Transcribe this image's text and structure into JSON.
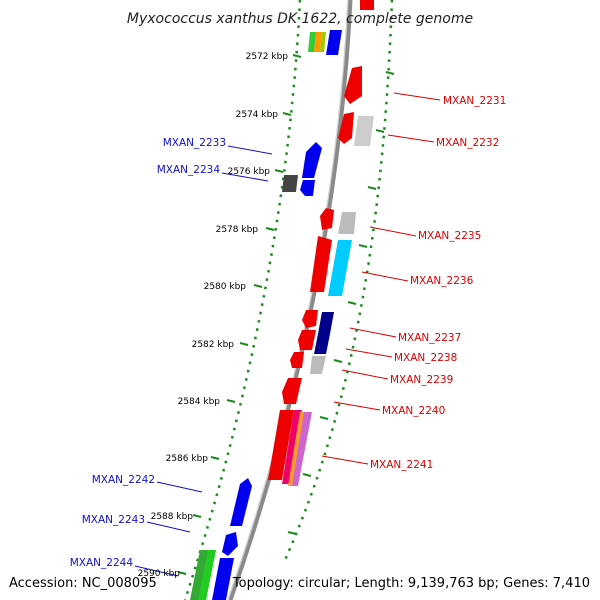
{
  "title": "Myxococcus xanthus DK 1622, complete genome",
  "accession": "Accession: NC_008095",
  "summary": "Topology: circular; Length: 9,139,763 bp; Genes: 7,410",
  "colors": {
    "backbone": "#8a8a8a",
    "dotted_track": "#1a8a1a",
    "label_forward": "#1010cc",
    "label_reverse": "#dd0000"
  },
  "ticks": [
    "2572 kbp",
    "2574 kbp",
    "2576 kbp",
    "2578 kbp",
    "2580 kbp",
    "2582 kbp",
    "2584 kbp",
    "2586 kbp",
    "2588 kbp",
    "2590 kbp"
  ],
  "labels_left": [
    "MXAN_2233",
    "MXAN_2234",
    "MXAN_2242",
    "MXAN_2243",
    "MXAN_2244"
  ],
  "labels_right": [
    "MXAN_2231",
    "MXAN_2232",
    "MXAN_2235",
    "MXAN_2236",
    "MXAN_2237",
    "MXAN_2238",
    "MXAN_2239",
    "MXAN_2240",
    "MXAN_2241"
  ]
}
